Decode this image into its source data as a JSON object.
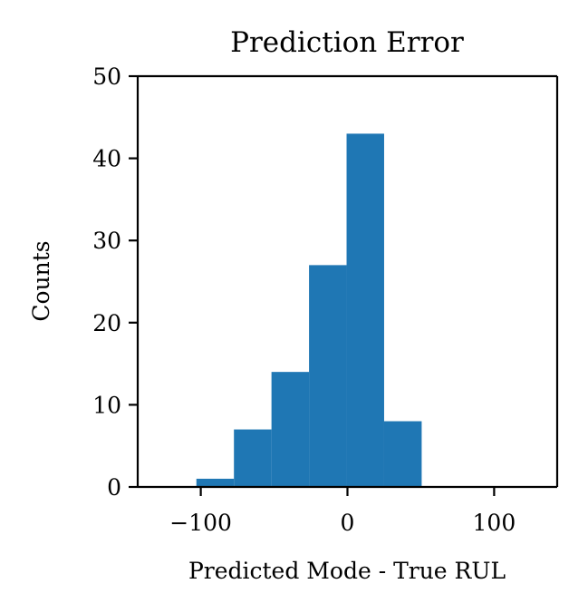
{
  "chart_data": {
    "type": "histogram",
    "title": "Prediction Error",
    "xlabel": "Predicted Mode - True RUL",
    "ylabel": "Counts",
    "xlim": [
      -143,
      143
    ],
    "ylim": [
      0,
      50
    ],
    "xticks": [
      -100,
      0,
      100
    ],
    "xtick_labels": [
      "−100",
      "0",
      "100"
    ],
    "yticks": [
      0,
      10,
      20,
      30,
      40,
      50
    ],
    "ytick_labels": [
      "0",
      "10",
      "20",
      "30",
      "40",
      "50"
    ],
    "bin_edges": [
      -103,
      -77.4,
      -51.8,
      -26.2,
      -0.6,
      25,
      50.6
    ],
    "values": [
      1,
      7,
      14,
      27,
      43,
      8
    ],
    "bar_color": "#1f77b4",
    "grid": false,
    "legend": "none"
  }
}
